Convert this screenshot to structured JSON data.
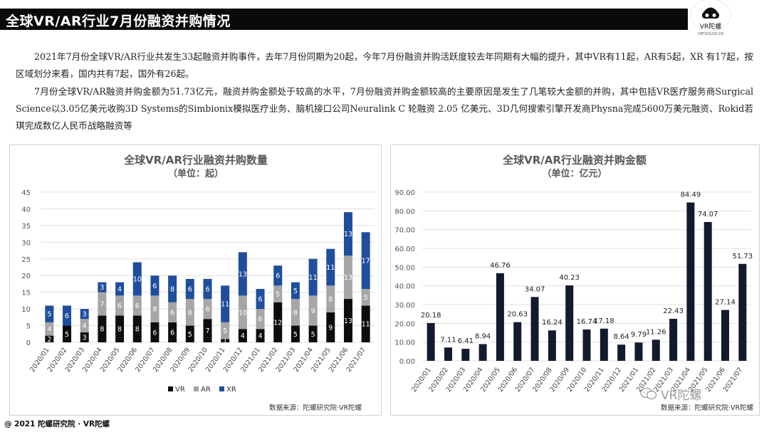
{
  "header": {
    "title": "全球VR/AR行业7月份融资并购情况",
    "logo_text": "VR陀螺",
    "logo_sub": "VRTUOLUO.CN"
  },
  "paragraphs": [
    "2021年7月份全球VR/AR行业共发生33起融资并购事件，去年7月份同期为20起，今年7月份融资并购活跃度较去年同期有大幅的提升，其中VR有11起，AR有5起，XR 有17起，按区域划分来看，国内共有7起，国外有26起。",
    "7月份全球VR/AR融资并购金额为51.73亿元，融资并购金额处于较高的水平，7月份融资并购金额较高的主要原因是发生了几笔较大金额的并购，其中包括VR医疗服务商Surgical Science以3.05亿美元收购3D Systems的Simbionix模拟医疗业务、脑机接口公司Neuralink C 轮融资 2.05 亿美元、3D几何搜索引擎开发商Physna完成5600万美元融资、Rokid若琪完成数亿人民币战略融资等"
  ],
  "chart_data": [
    {
      "type": "bar",
      "stacked": true,
      "title": "全球VR/AR行业融资并购数量",
      "subtitle": "（单位：起）",
      "categories": [
        "2020/01",
        "2020/02",
        "2020/03",
        "2020/04",
        "2020/05",
        "2020/06",
        "2020/07",
        "2020/08",
        "2020/09",
        "2020/10",
        "2020/11",
        "2020/12",
        "2021/01",
        "2021/02",
        "2021/03",
        "2021/04",
        "2021/05",
        "2021/06",
        "2021/07"
      ],
      "series": [
        {
          "name": "VR",
          "color": "#0d0d0d",
          "values": [
            2,
            5,
            3,
            8,
            8,
            8,
            6,
            6,
            5,
            7,
            1,
            4,
            4,
            12,
            5,
            5,
            9,
            13,
            11
          ]
        },
        {
          "name": "AR",
          "color": "#a6a6a6",
          "values": [
            4,
            0,
            4,
            7,
            6,
            6,
            8,
            6,
            8,
            6,
            5,
            10,
            6,
            5,
            8,
            9,
            8,
            13,
            5
          ]
        },
        {
          "name": "XR",
          "color": "#1f4e9c",
          "values": [
            5,
            6,
            3,
            3,
            4,
            10,
            6,
            8,
            6,
            6,
            11,
            13,
            6,
            6,
            5,
            11,
            11,
            13,
            17
          ]
        }
      ],
      "ylim": [
        0,
        45
      ],
      "yticks": [
        0,
        5,
        10,
        15,
        20,
        25,
        30,
        35,
        40,
        45
      ],
      "grid": true,
      "legend": "bottom",
      "source": "数据来源：陀螺研究院·VR陀螺"
    },
    {
      "type": "bar",
      "title": "全球VR/AR行业融资并购金额",
      "subtitle": "（单位：亿元）",
      "categories": [
        "2020/01",
        "2020/02",
        "2020/03",
        "2020/04",
        "2020/05",
        "2020/06",
        "2020/07",
        "2020/08",
        "2020/09",
        "2020/10",
        "2020/11",
        "2020/12",
        "2021/01",
        "2021/02",
        "2021/03",
        "2021/04",
        "2021/05",
        "2021/06",
        "2021/07"
      ],
      "values": [
        20.18,
        7.11,
        6.41,
        8.94,
        46.76,
        20.63,
        34.07,
        16.24,
        40.23,
        16.74,
        17.18,
        8.64,
        9.79,
        11.26,
        22.43,
        84.49,
        74.07,
        27.14,
        51.73
      ],
      "color": "#141a2e",
      "ylim": [
        0,
        90
      ],
      "yticks": [
        "0.00",
        "10.00",
        "20.00",
        "30.00",
        "40.00",
        "50.00",
        "60.00",
        "70.00",
        "80.00",
        "90.00"
      ],
      "grid": true,
      "source": "数据来源：陀螺研究院·VR陀螺"
    }
  ],
  "footer": "@ 2021 陀螺研究院 · VR陀螺",
  "watermark": "VR陀螺"
}
